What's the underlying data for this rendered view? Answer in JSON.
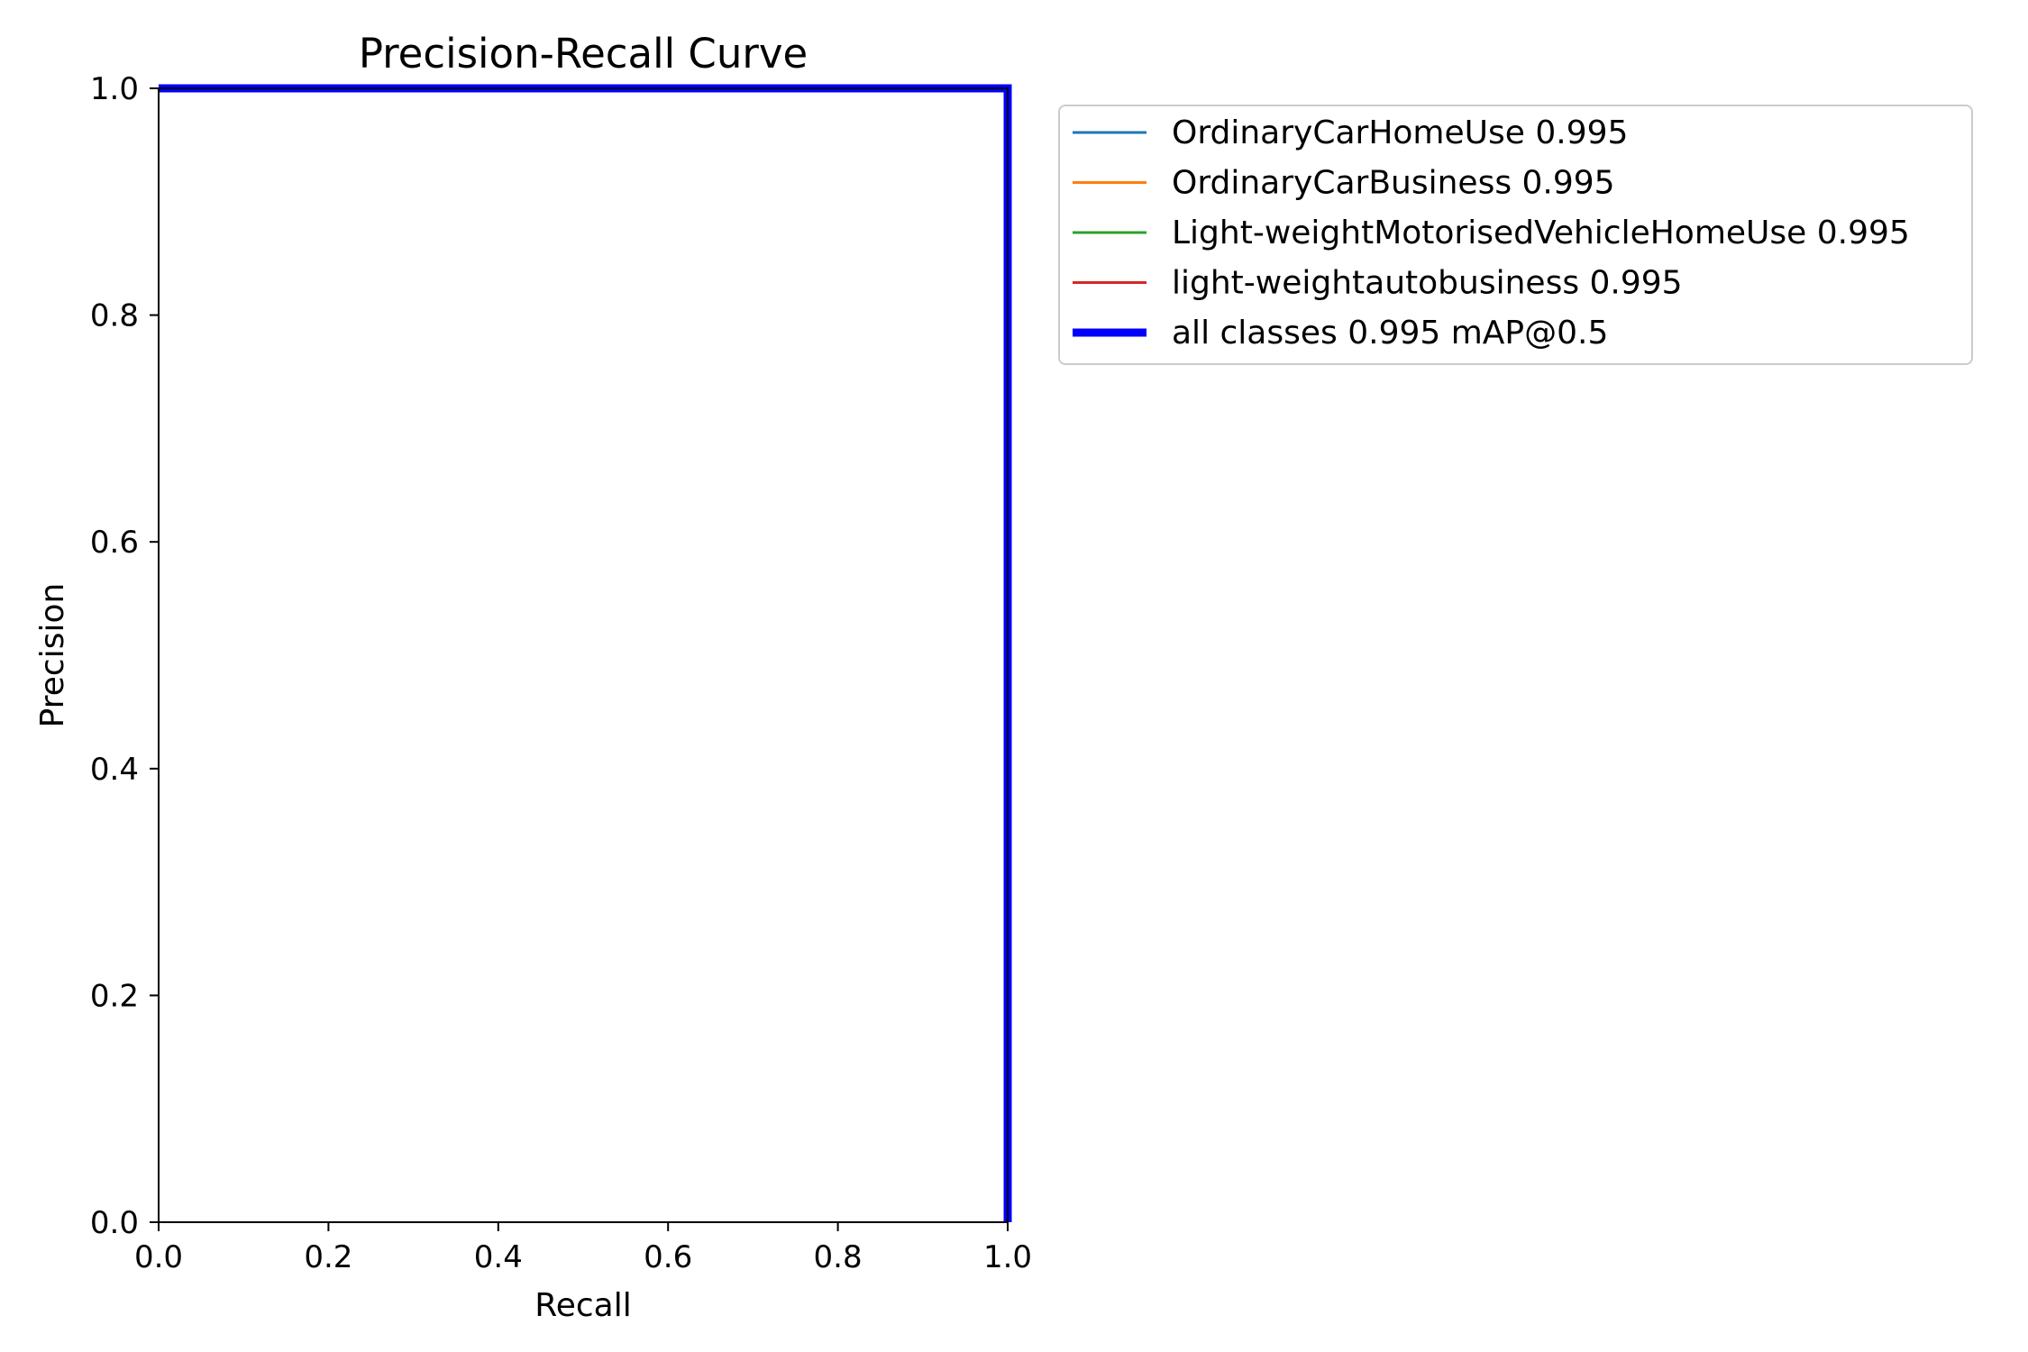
{
  "chart_data": {
    "type": "line",
    "title": "Precision-Recall Curve",
    "xlabel": "Recall",
    "ylabel": "Precision",
    "xlim": [
      0.0,
      1.0
    ],
    "ylim": [
      0.0,
      1.0
    ],
    "xticks": [
      "0.0",
      "0.2",
      "0.4",
      "0.6",
      "0.8",
      "1.0"
    ],
    "yticks": [
      "0.0",
      "0.2",
      "0.4",
      "0.6",
      "0.8",
      "1.0"
    ],
    "grid": false,
    "legend_position": "outside-top-right",
    "series": [
      {
        "name": "OrdinaryCarHomeUse",
        "label": "OrdinaryCarHomeUse 0.995",
        "ap": 0.995,
        "color": "#1f77b4",
        "line_width": 1,
        "x": [
          0.0,
          1.0,
          1.0
        ],
        "y": [
          1.0,
          1.0,
          0.0
        ]
      },
      {
        "name": "OrdinaryCarBusiness",
        "label": "OrdinaryCarBusiness 0.995",
        "ap": 0.995,
        "color": "#ff7f0e",
        "line_width": 1,
        "x": [
          0.0,
          1.0,
          1.0
        ],
        "y": [
          1.0,
          1.0,
          0.0
        ]
      },
      {
        "name": "Light-weightMotorisedVehicleHomeUse",
        "label": "Light-weightMotorisedVehicleHomeUse 0.995",
        "ap": 0.995,
        "color": "#2ca02c",
        "line_width": 1,
        "x": [
          0.0,
          1.0,
          1.0
        ],
        "y": [
          1.0,
          1.0,
          0.0
        ]
      },
      {
        "name": "light-weightautobusiness",
        "label": "light-weightautobusiness 0.995",
        "ap": 0.995,
        "color": "#d62728",
        "line_width": 1,
        "x": [
          0.0,
          1.0,
          1.0
        ],
        "y": [
          1.0,
          1.0,
          0.0
        ]
      },
      {
        "name": "all classes",
        "label": "all classes 0.995 mAP@0.5",
        "ap": 0.995,
        "color": "#0000ff",
        "line_width": 3,
        "x": [
          0.0,
          1.0,
          1.0
        ],
        "y": [
          1.0,
          1.0,
          0.0
        ]
      }
    ]
  }
}
